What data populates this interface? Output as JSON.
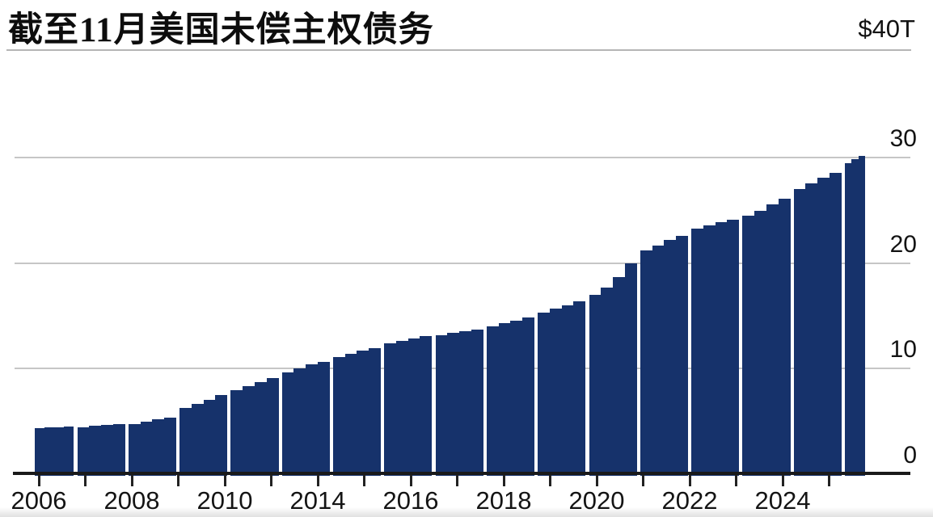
{
  "header": {
    "title": "截至11月美国未偿主权债务",
    "unit_label": "$40T"
  },
  "colors": {
    "bar": "#16326b",
    "axis": "#1a1a1a",
    "gridline": "#c6c6c6",
    "title_rule": "#b5b5b5",
    "text": "#131313",
    "background": "#ffffff"
  },
  "chart_data": {
    "type": "bar",
    "title": "截至11月美国未偿主权债务",
    "value_unit": "USD trillions",
    "unit_label": "$40T",
    "ylim": [
      0,
      40
    ],
    "y_axis_side": "right",
    "grid": true,
    "y_tick_values": [
      30,
      20,
      10,
      0
    ],
    "y_tick_labels": [
      "30",
      "20",
      "10",
      "0"
    ],
    "x_tick_labels": [
      "2006",
      "2008",
      "2010",
      "2014",
      "2016",
      "2018",
      "2020",
      "2022",
      "2024"
    ],
    "series_note": "stepped quarterly debt outstanding per year group, read from pixels",
    "groups": [
      [
        4.3,
        4.35,
        4.4,
        4.45
      ],
      [
        4.4,
        4.5,
        4.6,
        4.65
      ],
      [
        4.7,
        4.9,
        5.1,
        5.3
      ],
      [
        6.2,
        6.6,
        7.0,
        7.4
      ],
      [
        7.9,
        8.3,
        8.65,
        9.0
      ],
      [
        9.6,
        9.95,
        10.3,
        10.6
      ],
      [
        11.0,
        11.3,
        11.6,
        11.9
      ],
      [
        12.3,
        12.55,
        12.8,
        13.0
      ],
      [
        13.1,
        13.3,
        13.45,
        13.6
      ],
      [
        13.9,
        14.2,
        14.5,
        14.8
      ],
      [
        15.2,
        15.6,
        15.95,
        16.3
      ],
      [
        16.9,
        17.6,
        18.6,
        19.9
      ],
      [
        21.1,
        21.6,
        22.1,
        22.5
      ],
      [
        23.2,
        23.5,
        23.8,
        24.0
      ],
      [
        24.4,
        24.9,
        25.5,
        26.0
      ],
      [
        26.9,
        27.45,
        28.0,
        28.5
      ],
      [
        29.4,
        29.8,
        30.1
      ]
    ]
  }
}
